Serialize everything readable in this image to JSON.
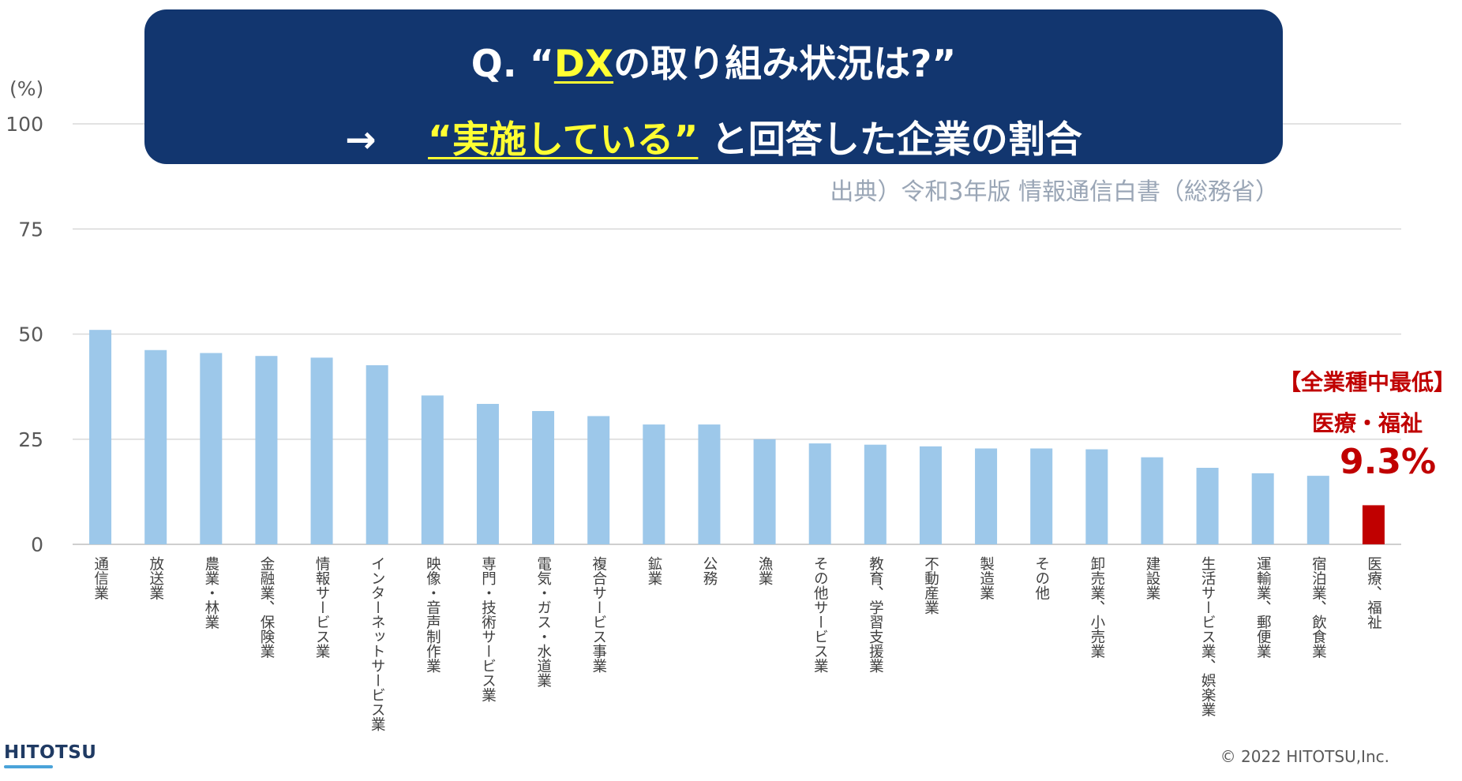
{
  "title": {
    "line1_prefix": "Q. “",
    "line1_highlight": "DX",
    "line1_suffix": "の取り組み状況は?”",
    "line2_arrow": "→",
    "line2_highlight": "“実施している”",
    "line2_suffix": "と回答した企業の割合"
  },
  "source": "出典）令和3年版 情報通信白書（総務省）",
  "callout": {
    "tag": "【全業種中最低】",
    "name": "医療・福祉",
    "value": "9.3%"
  },
  "logo": "HITOTSU",
  "copyright": "© 2022 HITOTSU,Inc.",
  "chart_data": {
    "type": "bar",
    "ylabel": "(%)",
    "ylim": [
      0,
      100
    ],
    "yticks": [
      0,
      25,
      50,
      75,
      100
    ],
    "grid": true,
    "categories": [
      "通信業",
      "放送業",
      "農業・林業",
      "金融業、保険業",
      "情報サービス業",
      "インターネットサービス業",
      "映像・音声制作業",
      "専門・技術サービス業",
      "電気・ガス・水道業",
      "複合サービス事業",
      "鉱業",
      "公務",
      "漁業",
      "その他サービス業",
      "教育、学習支援業",
      "不動産業",
      "製造業",
      "その他",
      "卸売業、小売業",
      "建設業",
      "生活サービス業、娯楽業",
      "運輸業、郵便業",
      "宿泊業、飲食業",
      "医療、福祉"
    ],
    "values": [
      51.0,
      46.2,
      45.5,
      44.8,
      44.4,
      42.6,
      35.4,
      33.4,
      31.7,
      30.5,
      28.5,
      28.5,
      25.0,
      24.0,
      23.7,
      23.3,
      22.8,
      22.8,
      22.6,
      20.7,
      18.2,
      16.9,
      16.3,
      9.3
    ],
    "colors": {
      "default": "#9dc8ea",
      "highlight": "#c00000"
    },
    "highlight_index": 23
  }
}
